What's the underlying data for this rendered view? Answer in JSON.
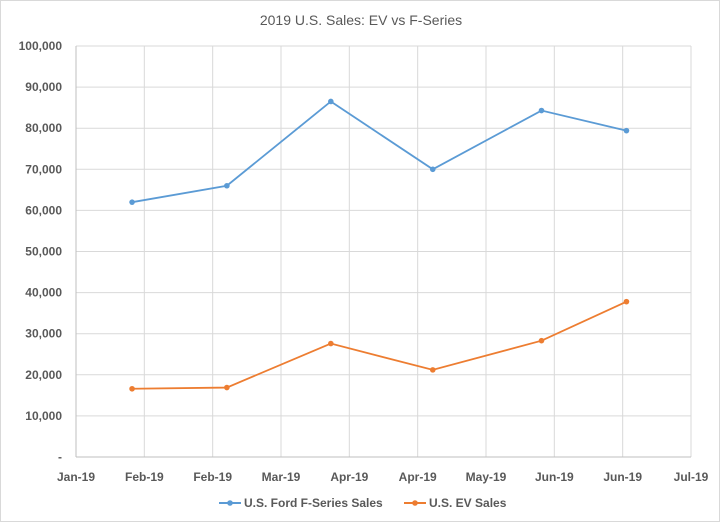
{
  "chart_data": {
    "type": "line",
    "title": "2019 U.S. Sales: EV vs F-Series",
    "xlabel": "",
    "ylabel": "",
    "ylim": [
      0,
      100000
    ],
    "yticks": [
      0,
      10000,
      20000,
      30000,
      40000,
      50000,
      60000,
      70000,
      80000,
      90000,
      100000
    ],
    "ytick_labels": [
      "-",
      "10,000",
      "20,000",
      "30,000",
      "40,000",
      "50,000",
      "60,000",
      "70,000",
      "80,000",
      "90,000",
      "100,000"
    ],
    "x_unit": "days since Jan 1 2019",
    "xlim": [
      0,
      181
    ],
    "xtick_labels": [
      "Jan-19",
      "Feb-19",
      "Feb-19",
      "Mar-19",
      "Apr-19",
      "Apr-19",
      "May-19",
      "Jun-19",
      "Jun-19",
      "Jul-19"
    ],
    "x": [
      16.5,
      44.4,
      75,
      105,
      137,
      162
    ],
    "grid": true,
    "legend": "bottom",
    "series": [
      {
        "name": "U.S. Ford F-Series Sales",
        "color": "#5b9bd5",
        "values": [
          62000,
          66000,
          86500,
          70000,
          84300,
          79400
        ]
      },
      {
        "name": "U.S. EV Sales",
        "color": "#ed7d31",
        "values": [
          16600,
          16900,
          27600,
          21200,
          28300,
          37800
        ]
      }
    ]
  }
}
